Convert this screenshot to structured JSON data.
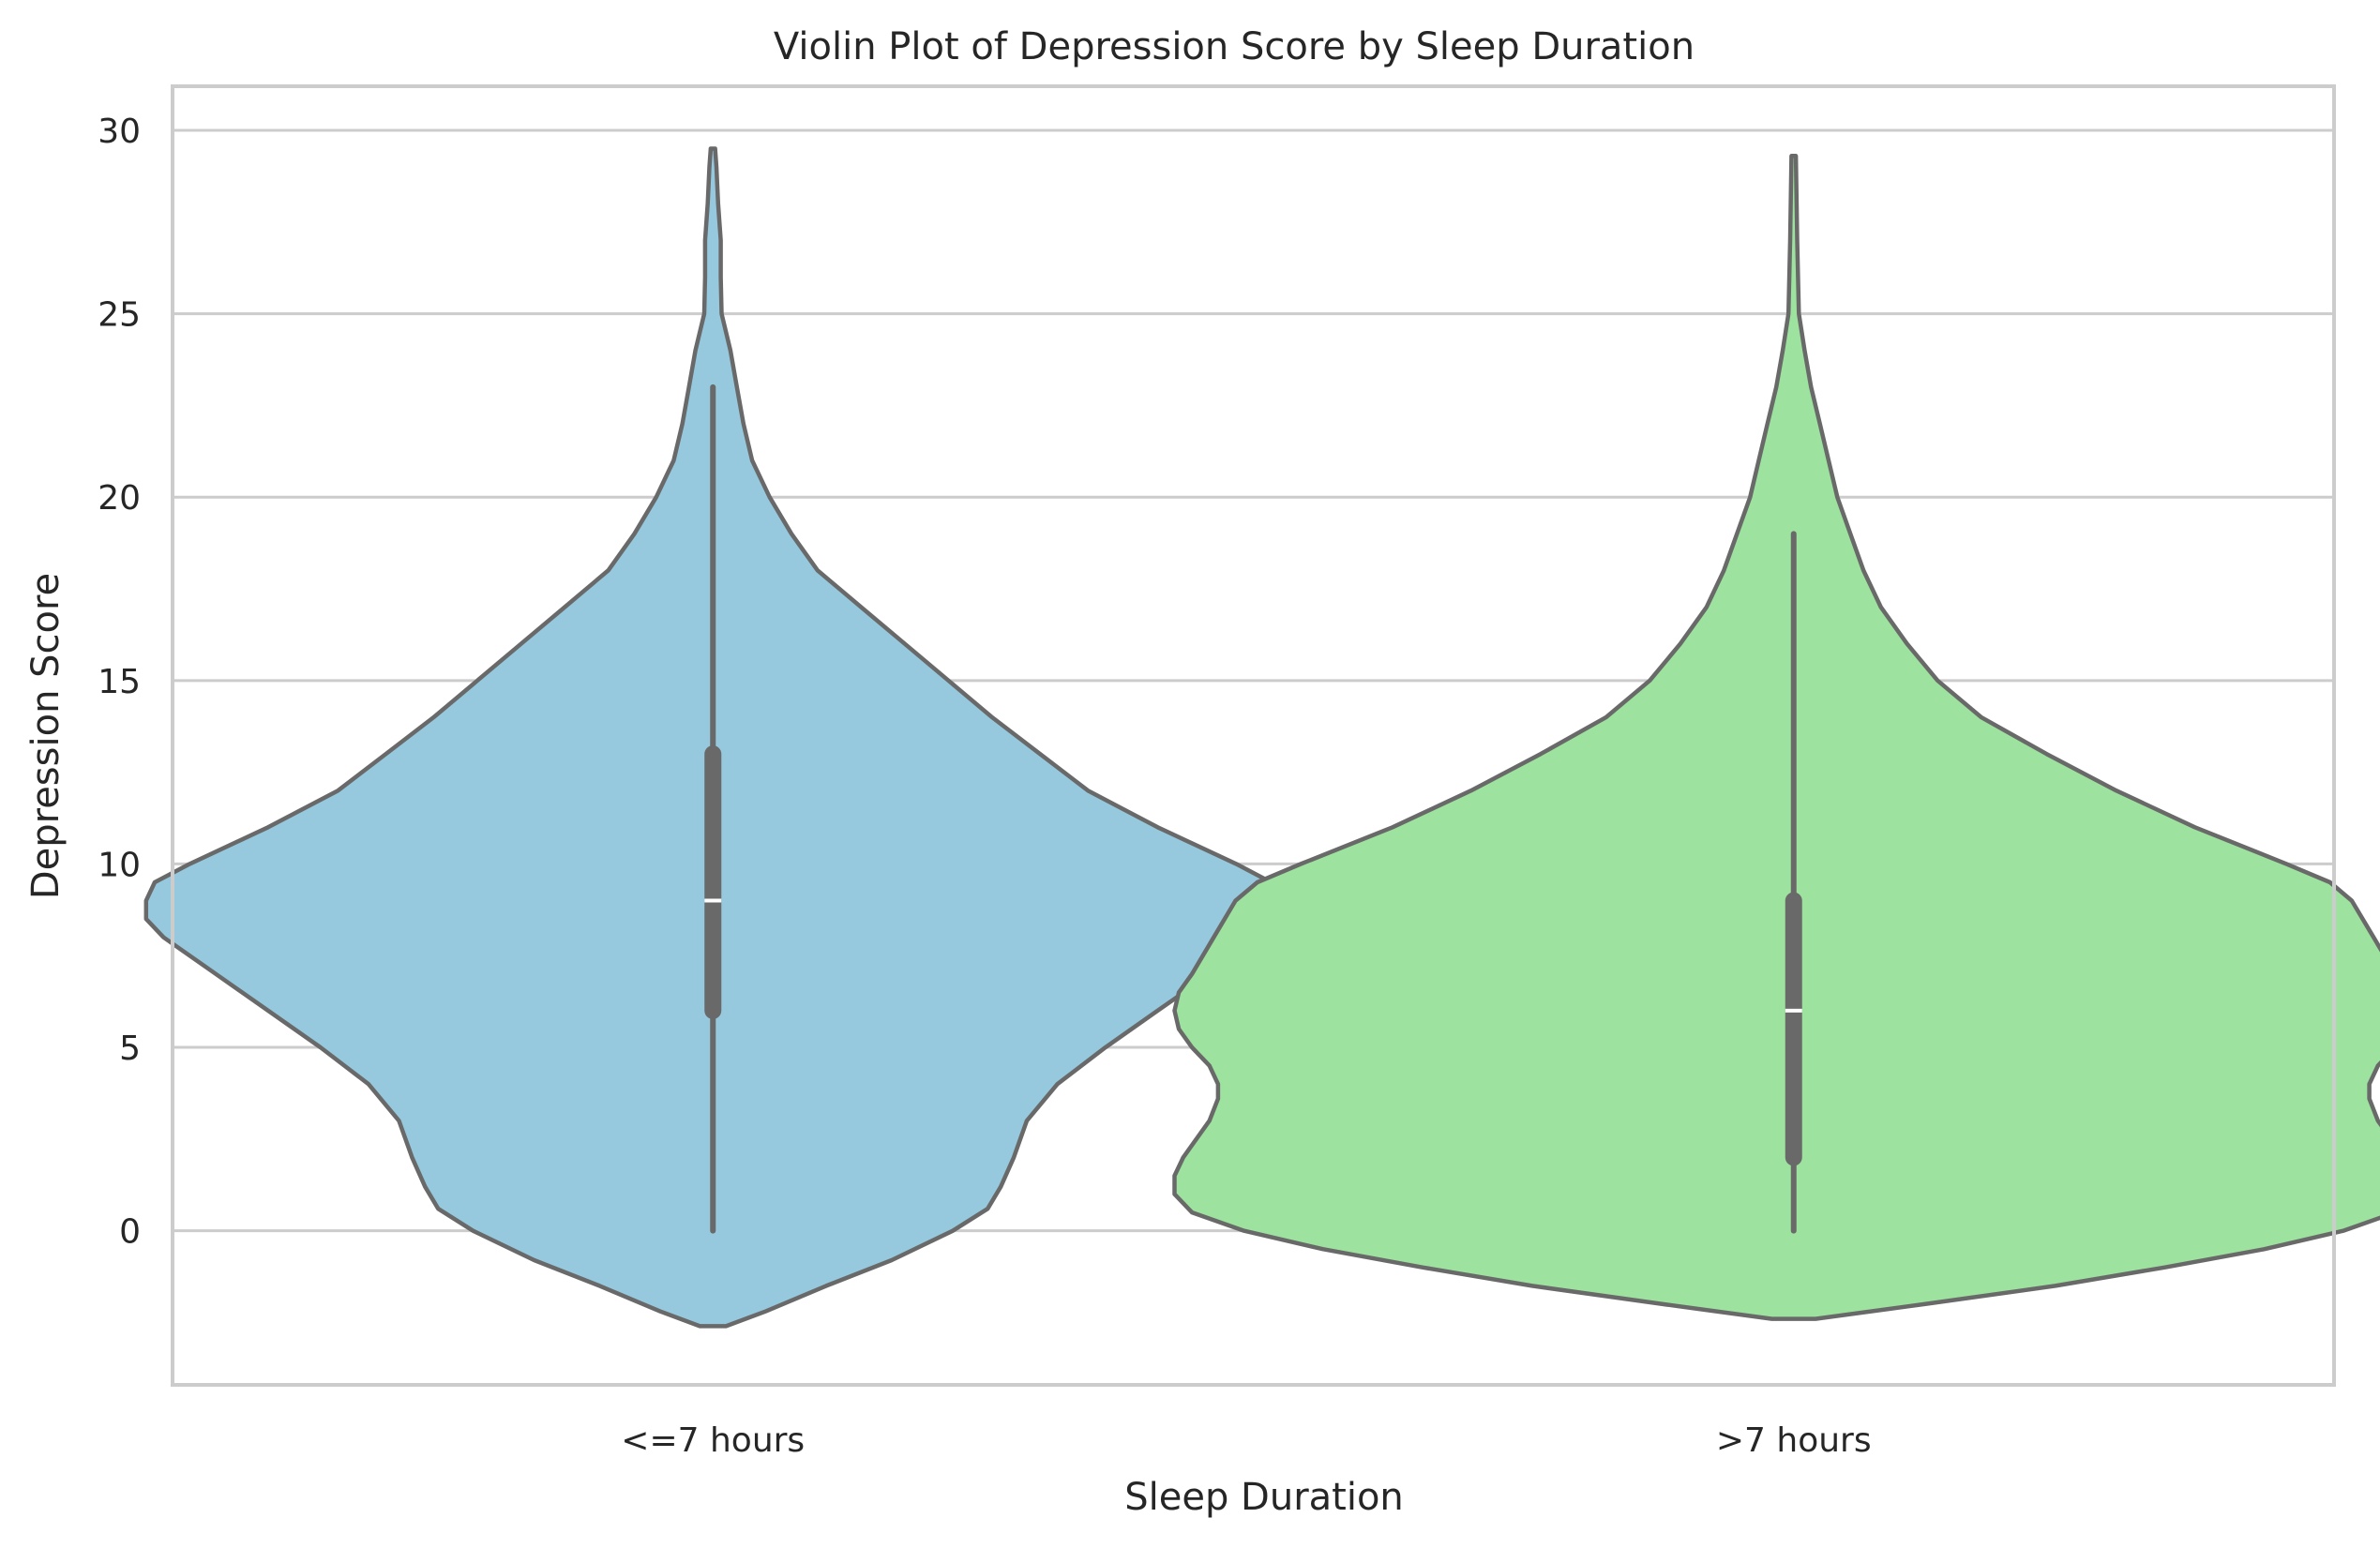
{
  "chart_data": {
    "type": "violin",
    "title": "Violin Plot of Depression Score by Sleep Duration",
    "xlabel": "Sleep Duration",
    "ylabel": "Depression Score",
    "ylim": [
      -4.2,
      31.2
    ],
    "yticks": [
      0,
      5,
      10,
      15,
      20,
      25,
      30
    ],
    "grid": "horizontal",
    "categories": [
      "<=7 hours",
      ">7 hours"
    ],
    "series": [
      {
        "category": "<=7 hours",
        "color": "#96c9de",
        "median": 9,
        "q1": 6,
        "q3": 13,
        "whisker_low": 0,
        "whisker_high": 23,
        "density": [
          [
            -2.6,
            0.03
          ],
          [
            -2.2,
            0.12
          ],
          [
            -1.5,
            0.26
          ],
          [
            -0.8,
            0.41
          ],
          [
            0,
            0.55
          ],
          [
            0.6,
            0.63
          ],
          [
            1.2,
            0.66
          ],
          [
            2,
            0.69
          ],
          [
            3,
            0.72
          ],
          [
            4,
            0.79
          ],
          [
            5,
            0.9
          ],
          [
            6,
            1.02
          ],
          [
            7,
            1.14
          ],
          [
            8,
            1.26
          ],
          [
            8.5,
            1.3
          ],
          [
            9,
            1.3
          ],
          [
            9.5,
            1.28
          ],
          [
            10,
            1.2
          ],
          [
            11,
            1.02
          ],
          [
            12,
            0.86
          ],
          [
            13,
            0.75
          ],
          [
            14,
            0.64
          ],
          [
            15,
            0.54
          ],
          [
            16,
            0.44
          ],
          [
            17,
            0.34
          ],
          [
            18,
            0.24
          ],
          [
            19,
            0.18
          ],
          [
            20,
            0.13
          ],
          [
            21,
            0.09
          ],
          [
            22,
            0.07
          ],
          [
            23,
            0.055
          ],
          [
            24,
            0.04
          ],
          [
            25,
            0.02
          ],
          [
            26,
            0.018
          ],
          [
            27,
            0.018
          ],
          [
            28,
            0.012
          ],
          [
            29,
            0.008
          ],
          [
            29.5,
            0.005
          ]
        ]
      },
      {
        "category": ">7 hours",
        "color": "#9de29e",
        "median": 6,
        "q1": 2,
        "q3": 9,
        "whisker_low": 0,
        "whisker_high": 19,
        "density": [
          [
            -2.4,
            0.05
          ],
          [
            -2,
            0.3
          ],
          [
            -1.5,
            0.6
          ],
          [
            -1,
            0.85
          ],
          [
            -0.5,
            1.08
          ],
          [
            0,
            1.26
          ],
          [
            0.5,
            1.38
          ],
          [
            1,
            1.42
          ],
          [
            1.5,
            1.42
          ],
          [
            2,
            1.4
          ],
          [
            2.5,
            1.37
          ],
          [
            3,
            1.34
          ],
          [
            3.6,
            1.32
          ],
          [
            4,
            1.32
          ],
          [
            4.5,
            1.34
          ],
          [
            5,
            1.38
          ],
          [
            5.5,
            1.41
          ],
          [
            6,
            1.42
          ],
          [
            6.5,
            1.41
          ],
          [
            7,
            1.38
          ],
          [
            8,
            1.33
          ],
          [
            9,
            1.28
          ],
          [
            9.5,
            1.23
          ],
          [
            10,
            1.13
          ],
          [
            11,
            0.92
          ],
          [
            12,
            0.74
          ],
          [
            13,
            0.58
          ],
          [
            14,
            0.43
          ],
          [
            15,
            0.33
          ],
          [
            16,
            0.26
          ],
          [
            17,
            0.2
          ],
          [
            18,
            0.16
          ],
          [
            19,
            0.13
          ],
          [
            20,
            0.1
          ],
          [
            21,
            0.08
          ],
          [
            22,
            0.06
          ],
          [
            23,
            0.04
          ],
          [
            24,
            0.025
          ],
          [
            25,
            0.012
          ],
          [
            27,
            0.008
          ],
          [
            29.3,
            0.005
          ]
        ]
      }
    ]
  }
}
